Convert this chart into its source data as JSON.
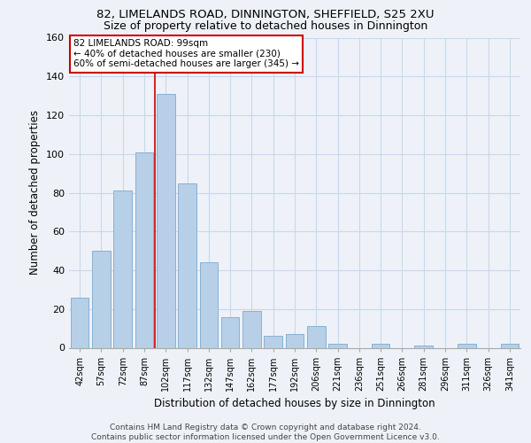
{
  "title": "82, LIMELANDS ROAD, DINNINGTON, SHEFFIELD, S25 2XU",
  "subtitle": "Size of property relative to detached houses in Dinnington",
  "xlabel": "Distribution of detached houses by size in Dinnington",
  "ylabel": "Number of detached properties",
  "bar_labels": [
    "42sqm",
    "57sqm",
    "72sqm",
    "87sqm",
    "102sqm",
    "117sqm",
    "132sqm",
    "147sqm",
    "162sqm",
    "177sqm",
    "192sqm",
    "206sqm",
    "221sqm",
    "236sqm",
    "251sqm",
    "266sqm",
    "281sqm",
    "296sqm",
    "311sqm",
    "326sqm",
    "341sqm"
  ],
  "bar_values": [
    26,
    50,
    81,
    101,
    131,
    85,
    44,
    16,
    19,
    6,
    7,
    11,
    2,
    0,
    2,
    0,
    1,
    0,
    2,
    0,
    2
  ],
  "bar_color": "#b8cfe8",
  "bar_edge_color": "#7aaad0",
  "annotation_text_line1": "82 LIMELANDS ROAD: 99sqm",
  "annotation_text_line2": "← 40% of detached houses are smaller (230)",
  "annotation_text_line3": "60% of semi-detached houses are larger (345) →",
  "red_line_color": "#cc0000",
  "annotation_box_edge_color": "#cc0000",
  "ylim": [
    0,
    160
  ],
  "yticks": [
    0,
    20,
    40,
    60,
    80,
    100,
    120,
    140,
    160
  ],
  "grid_color": "#c8d8e8",
  "bg_color": "#eef2f8",
  "footer_line1": "Contains HM Land Registry data © Crown copyright and database right 2024.",
  "footer_line2": "Contains public sector information licensed under the Open Government Licence v3.0.",
  "title_fontsize": 9.5,
  "subtitle_fontsize": 9
}
